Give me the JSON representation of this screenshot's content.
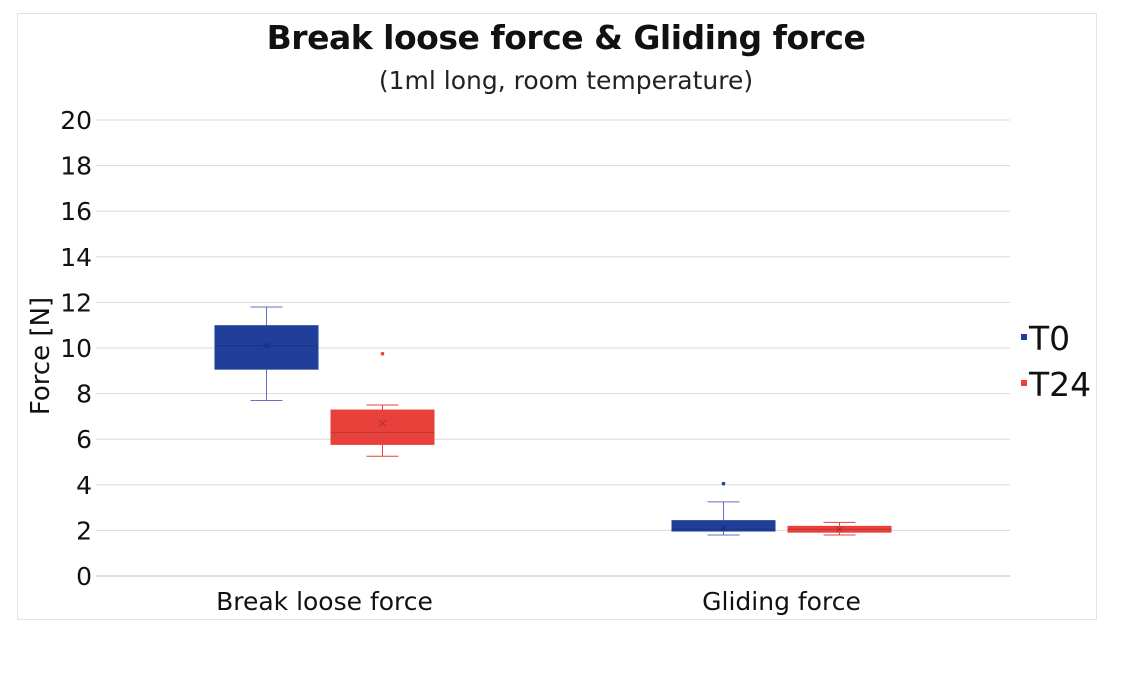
{
  "chart_data": {
    "type": "box",
    "title": "Break loose force & Gliding force",
    "subtitle": "(1ml long, room temperature)",
    "xlabel": "",
    "ylabel": "Force [N]",
    "ylim": [
      0,
      20
    ],
    "yticks": [
      0,
      2,
      4,
      6,
      8,
      10,
      12,
      14,
      16,
      18,
      20
    ],
    "grid": true,
    "legend_position": "right",
    "categories": [
      "Break loose force",
      "Gliding force"
    ],
    "series": [
      {
        "name": "T0",
        "color": "#1f3f9a",
        "boxes": [
          {
            "min": 7.7,
            "q1": 9.05,
            "median": 10.1,
            "q3": 11.0,
            "max": 11.8,
            "mean": 10.1,
            "outliers": []
          },
          {
            "min": 1.8,
            "q1": 1.95,
            "median": 2.05,
            "q3": 2.45,
            "max": 3.25,
            "mean": 2.1,
            "outliers": [
              4.05
            ]
          }
        ]
      },
      {
        "name": "T24",
        "color": "#e8413b",
        "boxes": [
          {
            "min": 5.25,
            "q1": 5.75,
            "median": 6.3,
            "q3": 7.3,
            "max": 7.5,
            "mean": 6.7,
            "outliers": [
              9.75
            ]
          },
          {
            "min": 1.8,
            "q1": 1.9,
            "median": 2.05,
            "q3": 2.2,
            "max": 2.35,
            "mean": 2.05,
            "outliers": []
          }
        ]
      }
    ]
  }
}
